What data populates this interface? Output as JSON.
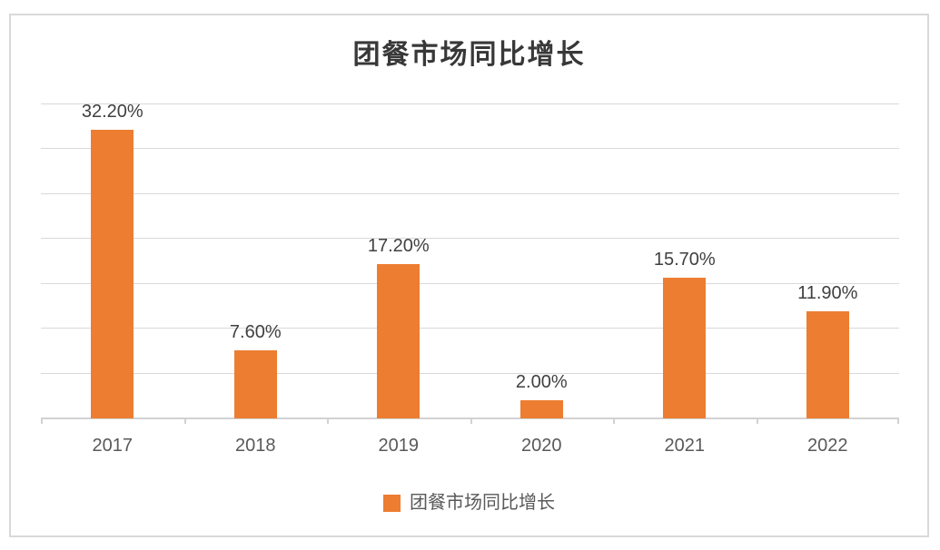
{
  "chart_data": {
    "type": "bar",
    "title": "团餐市场同比增长",
    "categories": [
      "2017",
      "2018",
      "2019",
      "2020",
      "2021",
      "2022"
    ],
    "values": [
      32.2,
      7.6,
      17.2,
      2.0,
      15.7,
      11.9
    ],
    "data_labels": [
      "32.20%",
      "7.60%",
      "17.20%",
      "2.00%",
      "15.70%",
      "11.90%"
    ],
    "series_name": "团餐市场同比增长",
    "unit": "percent",
    "ylim": [
      0,
      35
    ],
    "grid_step": 5,
    "grid": true,
    "y_axis_labels_visible": false,
    "legend_position": "bottom",
    "xlabel": "",
    "ylabel": ""
  },
  "colors": {
    "bar": "#ED7D31",
    "title_text": "#383838",
    "data_label_text": "#404040",
    "axis_label_text": "#595959",
    "legend_text": "#595959",
    "gridline": "#D9D9D9",
    "axis_line": "#D2D2D2",
    "frame_border": "#D9D9D9",
    "background": "#FFFFFF"
  },
  "legend": {
    "items": [
      {
        "label": "团餐市场同比增长",
        "color": "#ED7D31"
      }
    ]
  }
}
